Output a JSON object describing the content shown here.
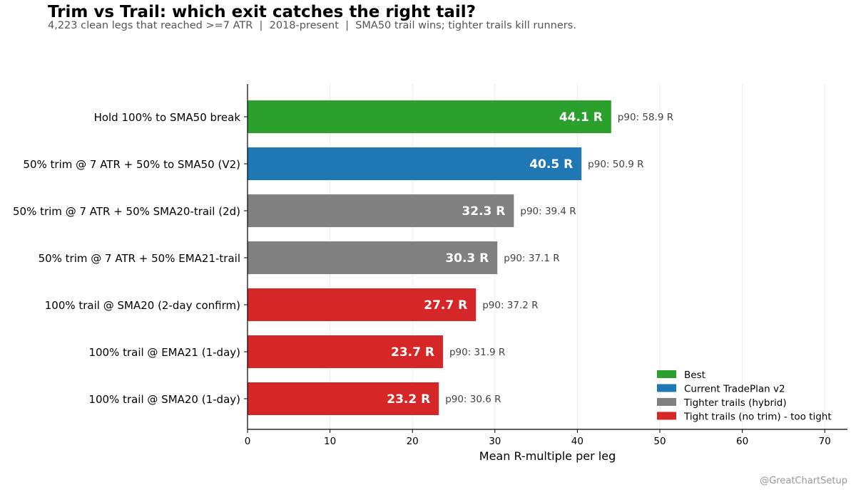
{
  "chart_data": {
    "type": "bar",
    "orientation": "horizontal",
    "title": "Trim vs Trail: which exit catches the right tail?",
    "subtitle": "4,223 clean legs that reached >=7 ATR  |  2018-present  |  SMA50 trail wins; tighter trails kill runners.",
    "xlabel": "Mean R-multiple per leg",
    "ylabel": "",
    "xlim": [
      0,
      72
    ],
    "xticks": [
      0,
      10,
      20,
      30,
      40,
      50,
      60,
      70
    ],
    "grid": "vertical",
    "legend_position": "bottom-right",
    "bars": [
      {
        "label": "Hold 100% to SMA50 break",
        "value": 44.1,
        "value_label": "44.1 R",
        "p90_label": "p90: 58.9 R",
        "group": 0
      },
      {
        "label": "50% trim @ 7 ATR + 50% to SMA50  (V2)",
        "value": 40.5,
        "value_label": "40.5 R",
        "p90_label": "p90: 50.9 R",
        "group": 1
      },
      {
        "label": "50% trim @ 7 ATR + 50% SMA20-trail (2d)",
        "value": 32.3,
        "value_label": "32.3 R",
        "p90_label": "p90: 39.4 R",
        "group": 2
      },
      {
        "label": "50% trim @ 7 ATR + 50% EMA21-trail",
        "value": 30.3,
        "value_label": "30.3 R",
        "p90_label": "p90: 37.1 R",
        "group": 2
      },
      {
        "label": "100% trail @ SMA20  (2-day confirm)",
        "value": 27.7,
        "value_label": "27.7 R",
        "p90_label": "p90: 37.2 R",
        "group": 3
      },
      {
        "label": "100% trail @ EMA21  (1-day)",
        "value": 23.7,
        "value_label": "23.7 R",
        "p90_label": "p90: 31.9 R",
        "group": 3
      },
      {
        "label": "100% trail @ SMA20  (1-day)",
        "value": 23.2,
        "value_label": "23.2 R",
        "p90_label": "p90: 30.6 R",
        "group": 3
      }
    ],
    "legend": [
      {
        "label": "Best",
        "color": "#2ca02c"
      },
      {
        "label": "Current TradePlan v2",
        "color": "#1f77b4"
      },
      {
        "label": "Tighter trails (hybrid)",
        "color": "#808080"
      },
      {
        "label": "Tight trails (no trim) - too tight",
        "color": "#d62728"
      }
    ]
  },
  "watermark": "@GreatChartSetup"
}
